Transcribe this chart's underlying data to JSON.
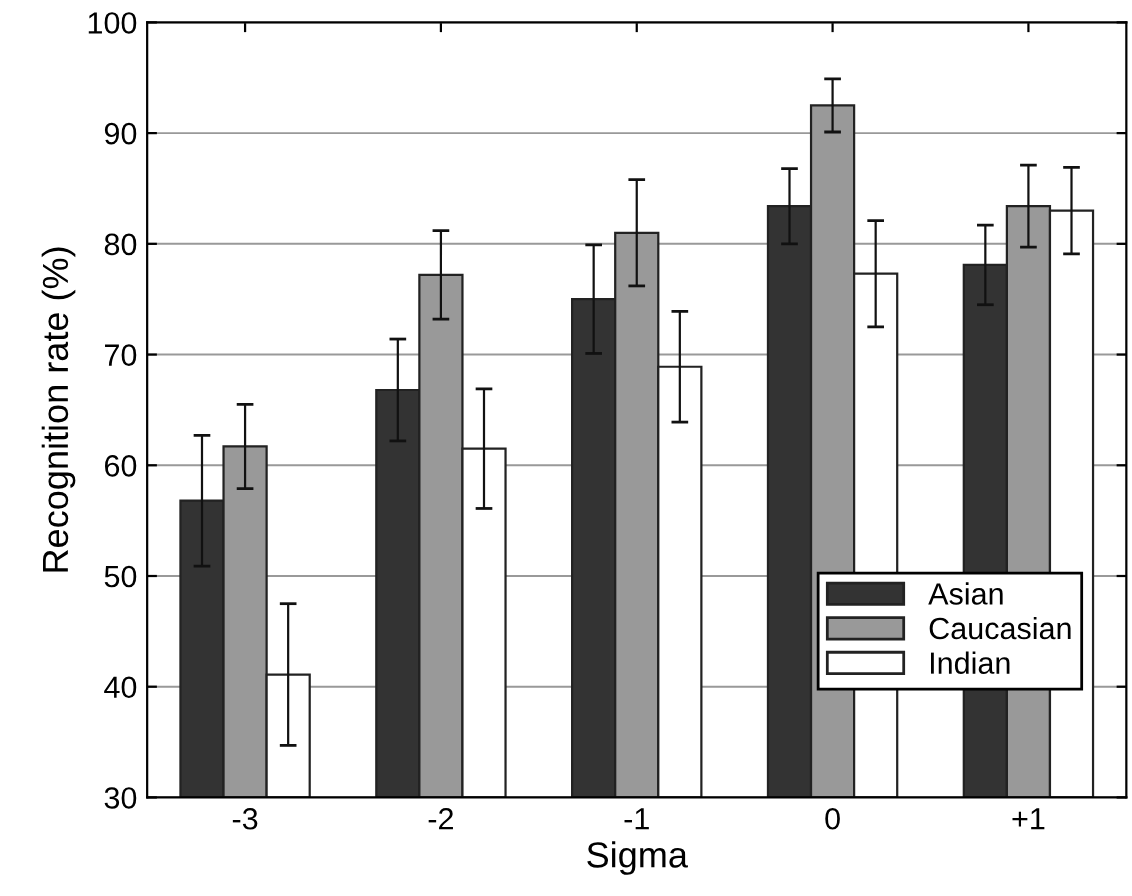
{
  "chart_data": {
    "type": "bar",
    "xlabel": "Sigma",
    "ylabel": "Recognition rate (%)",
    "categories": [
      "-3",
      "-2",
      "-1",
      "0",
      "+1"
    ],
    "series": [
      {
        "name": "Asian",
        "color": "#333333",
        "values": [
          56.8,
          66.8,
          75.0,
          83.4,
          78.1
        ],
        "errors": [
          5.9,
          4.6,
          4.9,
          3.4,
          3.6
        ]
      },
      {
        "name": "Caucasian",
        "color": "#999999",
        "values": [
          61.7,
          77.2,
          81.0,
          92.5,
          83.4
        ],
        "errors": [
          3.8,
          4.0,
          4.8,
          2.4,
          3.7
        ]
      },
      {
        "name": "Indian",
        "color": "#ffffff",
        "values": [
          41.1,
          61.5,
          68.9,
          77.3,
          83.0
        ],
        "errors": [
          6.4,
          5.4,
          5.0,
          4.8,
          3.9
        ]
      }
    ],
    "ylim": [
      30,
      100
    ],
    "yticks": [
      30,
      40,
      50,
      60,
      70,
      80,
      90,
      100
    ],
    "grid": "y",
    "legend": "bottom right"
  }
}
